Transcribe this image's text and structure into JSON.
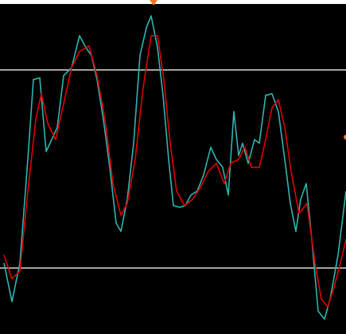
{
  "chart_data": {
    "type": "line",
    "xlim": [
      0,
      435
    ],
    "ylim": [
      0,
      100
    ],
    "levels": [
      80,
      20
    ],
    "level_color": "#d8d8d8",
    "background": "#000000",
    "series": [
      {
        "color": "#2fb5b0",
        "x": [
          5,
          15,
          25,
          35,
          42,
          50,
          58,
          65,
          72,
          80,
          90,
          100,
          108,
          115,
          122,
          130,
          138,
          146,
          152,
          160,
          168,
          176,
          184,
          190,
          198,
          205,
          212,
          218,
          226,
          233,
          240,
          248,
          256,
          265,
          272,
          280,
          287,
          294,
          300,
          305,
          312,
          320,
          326,
          334,
          342,
          350,
          358,
          365,
          372,
          378,
          385,
          392,
          400,
          408,
          415,
          425,
          435
        ],
        "values": [
          21.5,
          9.8,
          21.5,
          52.9,
          77.1,
          77.6,
          55.3,
          58.9,
          62.6,
          78.3,
          80.7,
          90.4,
          86.8,
          84.4,
          77.1,
          65,
          50.5,
          33.6,
          31.1,
          40.8,
          57.8,
          84.4,
          92.8,
          96.4,
          86.8,
          72.3,
          52.9,
          38.9,
          38.4,
          38.9,
          42.1,
          43.3,
          48.2,
          56.6,
          52.9,
          50.5,
          42.1,
          67.4,
          54.1,
          57.8,
          51.7,
          58.9,
          57.8,
          72.3,
          72.8,
          67.4,
          52.9,
          39.6,
          31.1,
          40.8,
          45.6,
          28.7,
          6.9,
          4.5,
          10.6,
          23.9,
          43.3
        ]
      },
      {
        "color": "#e00000",
        "x": [
          5,
          15,
          25,
          35,
          45,
          52,
          60,
          70,
          80,
          90,
          100,
          112,
          122,
          132,
          142,
          152,
          160,
          170,
          180,
          190,
          198,
          206,
          214,
          222,
          232,
          242,
          252,
          262,
          272,
          282,
          290,
          300,
          308,
          316,
          326,
          334,
          342,
          350,
          358,
          366,
          376,
          386,
          396,
          404,
          412,
          420,
          428,
          435
        ],
        "values": [
          24,
          16.7,
          19.1,
          43.2,
          65,
          72.8,
          63.8,
          58.9,
          69.8,
          80.7,
          85.6,
          87.3,
          78.3,
          65,
          45.6,
          36,
          39.6,
          52.9,
          74.7,
          90.4,
          90.4,
          77.1,
          57.8,
          43.3,
          38.9,
          40.8,
          44.4,
          49.3,
          51.7,
          45.6,
          51.7,
          52.9,
          56.6,
          50.5,
          50.5,
          58.9,
          68.6,
          71,
          62.6,
          49.3,
          36.5,
          39.6,
          21.5,
          10.6,
          8.2,
          14.2,
          21.5,
          28.7
        ]
      }
    ]
  }
}
